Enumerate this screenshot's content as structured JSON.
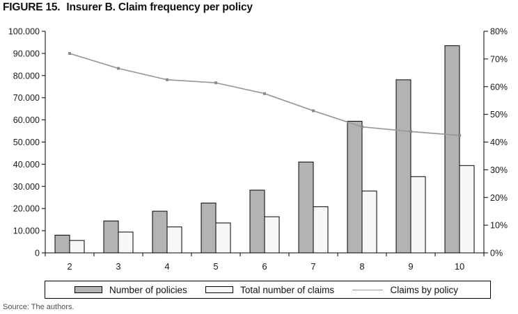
{
  "figure": {
    "title_prefix": "FIGURE 15.",
    "title_text": "Insurer B. Claim frequency per policy",
    "source": "Source: The authors."
  },
  "legend": {
    "items": [
      {
        "label": "Number of policies",
        "type": "bar",
        "color": "#b3b3b3"
      },
      {
        "label": "Total number of claims",
        "type": "bar",
        "color": "#f7f7f7"
      },
      {
        "label": "Claims by policy",
        "type": "line",
        "color": "#999999"
      }
    ]
  },
  "chart_data": {
    "type": "bar+line combo",
    "title": "FIGURE 15. Insurer B. Claim frequency per policy",
    "categories": [
      "2",
      "3",
      "4",
      "5",
      "6",
      "7",
      "8",
      "9",
      "10"
    ],
    "series": [
      {
        "name": "Number of policies",
        "type": "bar",
        "axis": "left",
        "values": [
          8000,
          14400,
          18800,
          22500,
          28300,
          41000,
          59400,
          78100,
          93500
        ]
      },
      {
        "name": "Total number of claims",
        "type": "bar",
        "axis": "left",
        "values": [
          5600,
          9400,
          11700,
          13500,
          16300,
          20800,
          27900,
          34400,
          39400
        ]
      },
      {
        "name": "Claims by policy",
        "type": "line",
        "axis": "right",
        "values": [
          72.0,
          66.6,
          62.5,
          61.4,
          57.5,
          51.3,
          45.5,
          43.8,
          42.4
        ]
      }
    ],
    "left_axis": {
      "min": 0,
      "max": 100000,
      "step": 10000,
      "tick_labels": [
        "100.000",
        "90.000",
        "80.000",
        "70.000",
        "60.000",
        "50.000",
        "40.000",
        "30.000",
        "20.000",
        "10.000",
        "0"
      ]
    },
    "right_axis": {
      "min": 0,
      "max": 80,
      "step": 10,
      "tick_labels": [
        "80%",
        "70%",
        "60%",
        "50%",
        "40%",
        "30%",
        "20%",
        "10%",
        "0%"
      ]
    },
    "grid": false,
    "legend_position": "bottom-box"
  },
  "colors": {
    "bar_policies_fill": "#b3b3b3",
    "bar_claims_fill": "#f7f7f7",
    "bar_stroke": "#000000",
    "line_color": "#999999",
    "marker_color": "#8a8a8a",
    "axis_color": "#000000",
    "text_color": "#1a1a1a"
  }
}
